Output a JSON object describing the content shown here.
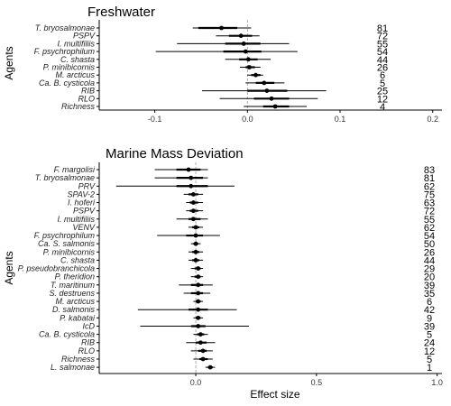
{
  "chart_data": [
    {
      "type": "forest",
      "title": "Freshwater",
      "ylabel": "Agents",
      "xlabel": "",
      "xlim": [
        -0.16,
        0.21
      ],
      "xticks": [
        "-0.1",
        "0.0",
        "0.1",
        "0.2"
      ],
      "xtick_values": [
        -0.1,
        0.0,
        0.1,
        0.2
      ],
      "reference_line": 0,
      "rows": [
        {
          "agent": "T. bryosalmonae",
          "est": -0.028,
          "lo": -0.059,
          "hi": 0.004,
          "ilo": -0.053,
          "ihi": -0.011,
          "n": "81"
        },
        {
          "agent": "PSPV",
          "est": -0.007,
          "lo": -0.034,
          "hi": 0.013,
          "ilo": -0.02,
          "ihi": 0.005,
          "n": "72"
        },
        {
          "agent": "I. multifiliis",
          "est": -0.004,
          "lo": -0.076,
          "hi": 0.045,
          "ilo": -0.024,
          "ihi": 0.014,
          "n": "55"
        },
        {
          "agent": "F. psychrophilum",
          "est": -0.002,
          "lo": -0.099,
          "hi": 0.054,
          "ilo": -0.026,
          "ihi": 0.015,
          "n": "54"
        },
        {
          "agent": "C. shasta",
          "est": 0.001,
          "lo": -0.024,
          "hi": 0.025,
          "ilo": -0.009,
          "ihi": 0.011,
          "n": "44"
        },
        {
          "agent": "P. minibicornis",
          "est": 0.002,
          "lo": -0.008,
          "hi": 0.014,
          "ilo": -0.002,
          "ihi": 0.008,
          "n": "26"
        },
        {
          "agent": "M. arcticus",
          "est": 0.009,
          "lo": 0.0,
          "hi": 0.017,
          "ilo": 0.004,
          "ihi": 0.014,
          "n": "6"
        },
        {
          "agent": "Ca. B. cysticola",
          "est": 0.018,
          "lo": -0.002,
          "hi": 0.04,
          "ilo": 0.009,
          "ihi": 0.029,
          "n": "5"
        },
        {
          "agent": "RIB",
          "est": 0.021,
          "lo": -0.049,
          "hi": 0.085,
          "ilo": 0.0,
          "ihi": 0.043,
          "n": "25"
        },
        {
          "agent": "RLO",
          "est": 0.026,
          "lo": -0.03,
          "hi": 0.076,
          "ilo": 0.007,
          "ihi": 0.045,
          "n": "12"
        },
        {
          "agent": "Richness",
          "est": 0.03,
          "lo": -0.004,
          "hi": 0.064,
          "ilo": 0.017,
          "ihi": 0.045,
          "n": "4"
        }
      ]
    },
    {
      "type": "forest",
      "title": "Marine Mass Deviation",
      "ylabel": "Agents",
      "xlabel": "Effect size",
      "xlim": [
        -0.4,
        1.02
      ],
      "xticks": [
        "0.0",
        "0.5",
        "1.0"
      ],
      "xtick_values": [
        0.0,
        0.5,
        1.0
      ],
      "reference_line": 0,
      "rows": [
        {
          "agent": "F. margolisi",
          "est": -0.03,
          "lo": -0.17,
          "hi": 0.05,
          "ilo": -0.08,
          "ihi": 0.02,
          "n": "83"
        },
        {
          "agent": "T. bryosalmonae",
          "est": -0.02,
          "lo": -0.17,
          "hi": 0.05,
          "ilo": -0.08,
          "ihi": 0.03,
          "n": "81"
        },
        {
          "agent": "PRV",
          "est": -0.02,
          "lo": -0.33,
          "hi": 0.16,
          "ilo": -0.08,
          "ihi": 0.05,
          "n": "62"
        },
        {
          "agent": "SPAV-2",
          "est": -0.01,
          "lo": -0.05,
          "hi": 0.03,
          "ilo": -0.03,
          "ihi": 0.01,
          "n": "75"
        },
        {
          "agent": "I. hoferi",
          "est": -0.01,
          "lo": -0.04,
          "hi": 0.03,
          "ilo": -0.025,
          "ihi": 0.01,
          "n": "63"
        },
        {
          "agent": "PSPV",
          "est": -0.01,
          "lo": -0.04,
          "hi": 0.03,
          "ilo": -0.025,
          "ihi": 0.01,
          "n": "72"
        },
        {
          "agent": "I. multifiliis",
          "est": -0.01,
          "lo": -0.08,
          "hi": 0.05,
          "ilo": -0.03,
          "ihi": 0.02,
          "n": "55"
        },
        {
          "agent": "VENV",
          "est": 0.0,
          "lo": -0.03,
          "hi": 0.03,
          "ilo": -0.015,
          "ihi": 0.015,
          "n": "62"
        },
        {
          "agent": "F. psychrophilum",
          "est": 0.0,
          "lo": -0.16,
          "hi": 0.1,
          "ilo": -0.04,
          "ihi": 0.03,
          "n": "54"
        },
        {
          "agent": "Ca. S. salmonis",
          "est": 0.0,
          "lo": -0.02,
          "hi": 0.02,
          "ilo": -0.01,
          "ihi": 0.01,
          "n": "50"
        },
        {
          "agent": "P. minibicornis",
          "est": 0.0,
          "lo": -0.03,
          "hi": 0.03,
          "ilo": -0.015,
          "ihi": 0.015,
          "n": "26"
        },
        {
          "agent": "C. shasta",
          "est": 0.0,
          "lo": -0.03,
          "hi": 0.03,
          "ilo": -0.015,
          "ihi": 0.015,
          "n": "44"
        },
        {
          "agent": "P. pseudobranchicola",
          "est": 0.01,
          "lo": -0.02,
          "hi": 0.03,
          "ilo": -0.005,
          "ihi": 0.02,
          "n": "29"
        },
        {
          "agent": "P. theridion",
          "est": 0.01,
          "lo": -0.02,
          "hi": 0.03,
          "ilo": -0.005,
          "ihi": 0.02,
          "n": "20"
        },
        {
          "agent": "T. maritinum",
          "est": 0.01,
          "lo": -0.07,
          "hi": 0.07,
          "ilo": -0.02,
          "ihi": 0.03,
          "n": "39"
        },
        {
          "agent": "S. destruens",
          "est": 0.01,
          "lo": -0.05,
          "hi": 0.06,
          "ilo": -0.02,
          "ihi": 0.03,
          "n": "35"
        },
        {
          "agent": "M. arcticus",
          "est": 0.01,
          "lo": -0.01,
          "hi": 0.03,
          "ilo": 0.0,
          "ihi": 0.02,
          "n": "6"
        },
        {
          "agent": "D. salmonis",
          "est": 0.01,
          "lo": -0.24,
          "hi": 0.17,
          "ilo": -0.03,
          "ihi": 0.05,
          "n": "42"
        },
        {
          "agent": "P. kabatai",
          "est": 0.01,
          "lo": -0.01,
          "hi": 0.03,
          "ilo": 0.0,
          "ihi": 0.02,
          "n": "9"
        },
        {
          "agent": "IcD",
          "est": 0.01,
          "lo": -0.23,
          "hi": 0.22,
          "ilo": -0.02,
          "ihi": 0.04,
          "n": "39"
        },
        {
          "agent": "Ca. B. cysticola",
          "est": 0.02,
          "lo": -0.01,
          "hi": 0.05,
          "ilo": 0.005,
          "ihi": 0.035,
          "n": "5"
        },
        {
          "agent": "RIB",
          "est": 0.02,
          "lo": -0.04,
          "hi": 0.08,
          "ilo": 0.0,
          "ihi": 0.045,
          "n": "24"
        },
        {
          "agent": "RLO",
          "est": 0.03,
          "lo": -0.02,
          "hi": 0.07,
          "ilo": 0.01,
          "ihi": 0.045,
          "n": "12"
        },
        {
          "agent": "Richness",
          "est": 0.03,
          "lo": -0.01,
          "hi": 0.07,
          "ilo": 0.015,
          "ihi": 0.05,
          "n": "5"
        },
        {
          "agent": "L. salmonae",
          "est": 0.06,
          "lo": 0.04,
          "hi": 0.08,
          "ilo": 0.05,
          "ihi": 0.07,
          "n": "1"
        }
      ]
    }
  ],
  "colors": {
    "axis": "#000000",
    "tick_text": "#333333",
    "zero_line": "#999999",
    "marker": "#000000"
  }
}
